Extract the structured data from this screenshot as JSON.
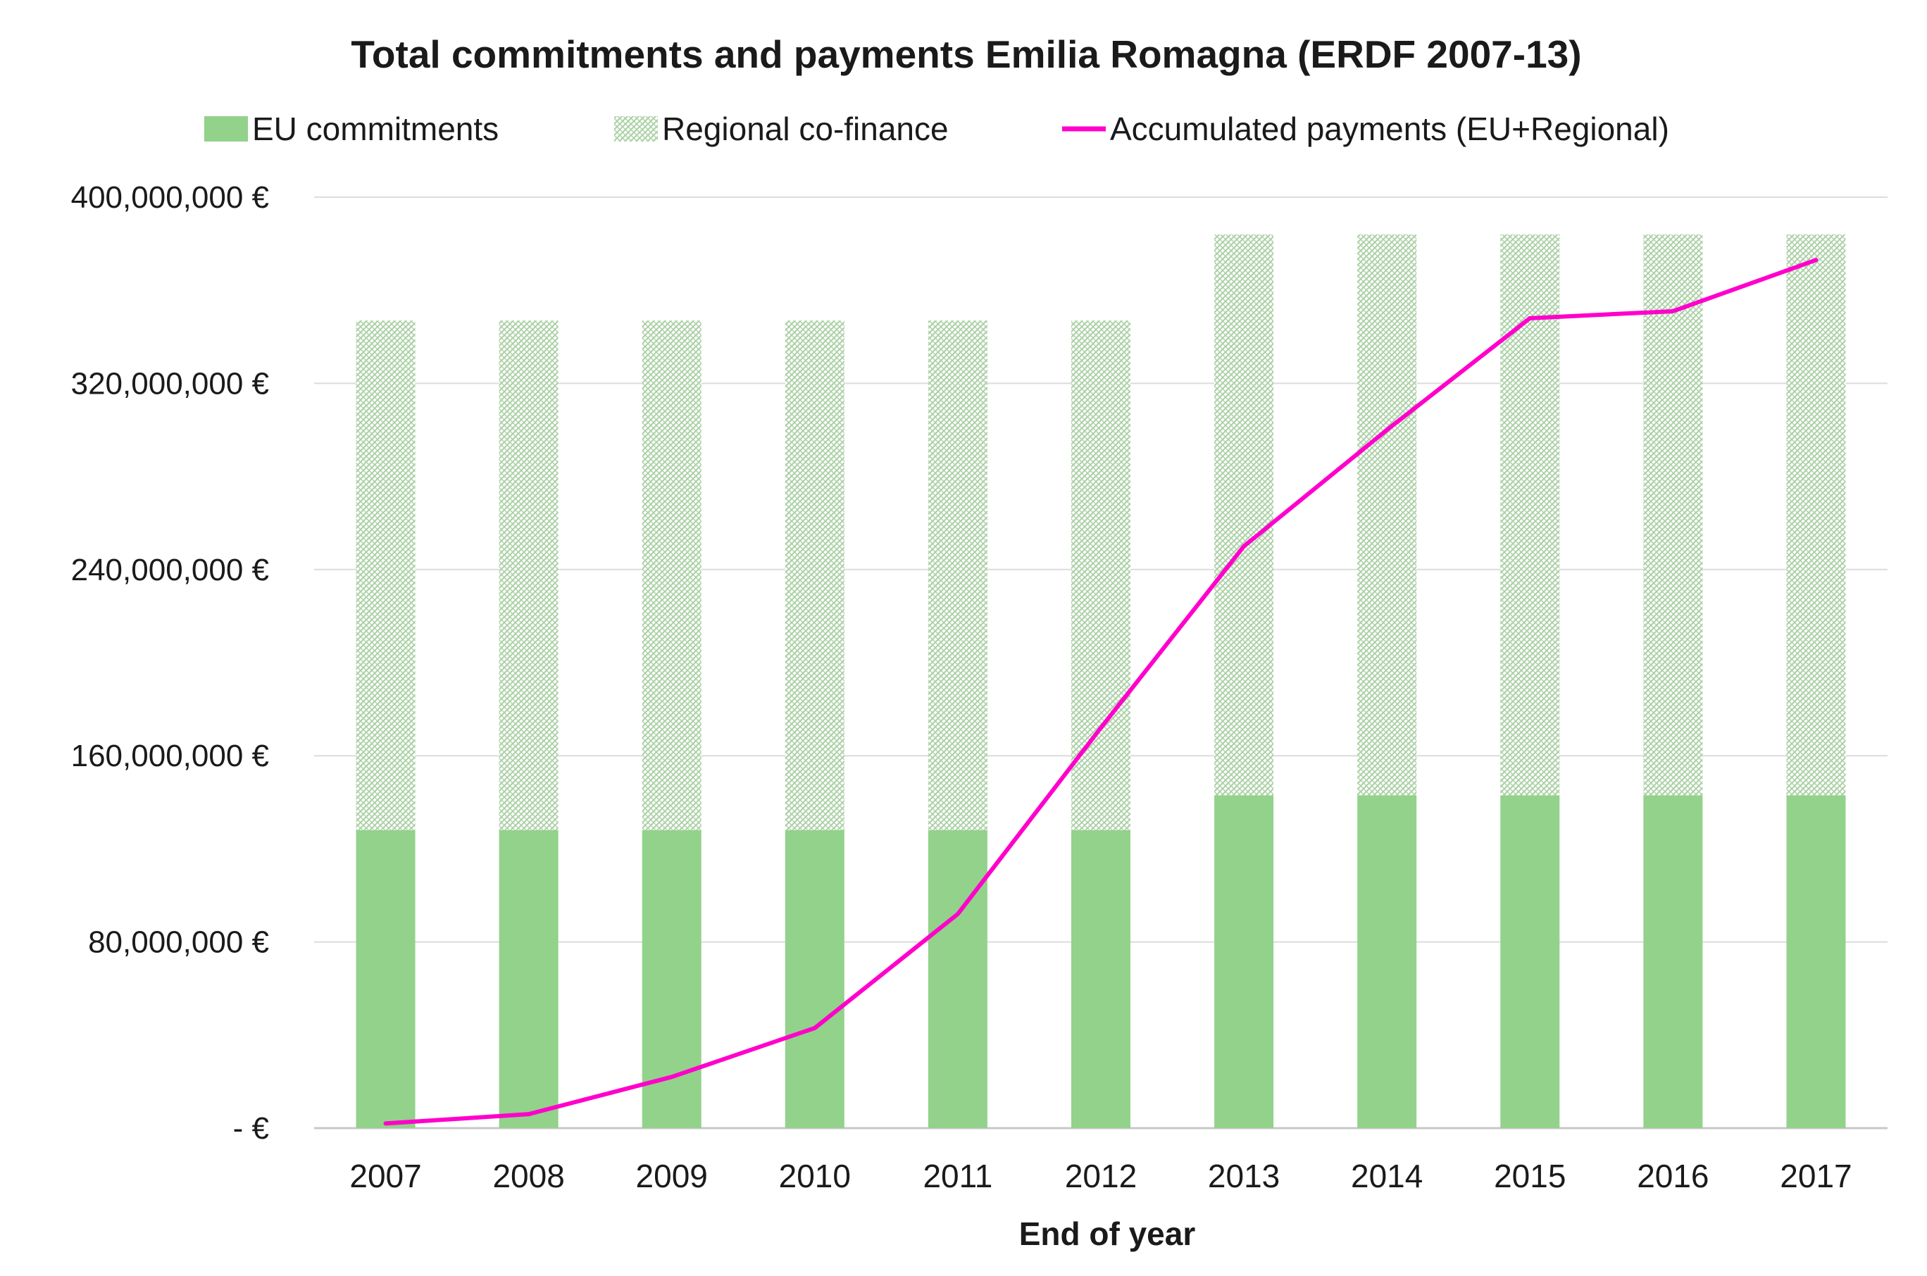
{
  "chart_data": {
    "type": "bar",
    "title": "Total commitments and payments Emilia Romagna (ERDF 2007-13)",
    "xlabel": "End of year",
    "ylabel": "",
    "categories": [
      "2007",
      "2008",
      "2009",
      "2010",
      "2011",
      "2012",
      "2013",
      "2014",
      "2015",
      "2016",
      "2017"
    ],
    "ylim": [
      0,
      400000000
    ],
    "y_ticks": [
      0,
      80000000,
      160000000,
      240000000,
      320000000,
      400000000
    ],
    "y_tick_labels": [
      "- €",
      "80,000,000 €",
      "160,000,000 €",
      "240,000,000 €",
      "320,000,000 €",
      "400,000,000 €"
    ],
    "stacked": true,
    "grid": true,
    "legend_position": "top",
    "series": [
      {
        "name": "EU commitments",
        "kind": "bar",
        "color": "#92d28a",
        "values": [
          128000000,
          128000000,
          128000000,
          128000000,
          128000000,
          128000000,
          143000000,
          143000000,
          143000000,
          143000000,
          143000000
        ]
      },
      {
        "name": "Regional co-finance",
        "kind": "bar",
        "pattern": "hatched",
        "color": "#c9e2c4",
        "values": [
          219000000,
          219000000,
          219000000,
          219000000,
          219000000,
          219000000,
          241000000,
          241000000,
          241000000,
          241000000,
          241000000
        ]
      },
      {
        "name": "Accumulated payments (EU+Regional)",
        "kind": "line",
        "color": "#ff00cc",
        "values": [
          2000000,
          6000000,
          22000000,
          43000000,
          92000000,
          172000000,
          250000000,
          300000000,
          348000000,
          351000000,
          373000000
        ]
      }
    ]
  }
}
